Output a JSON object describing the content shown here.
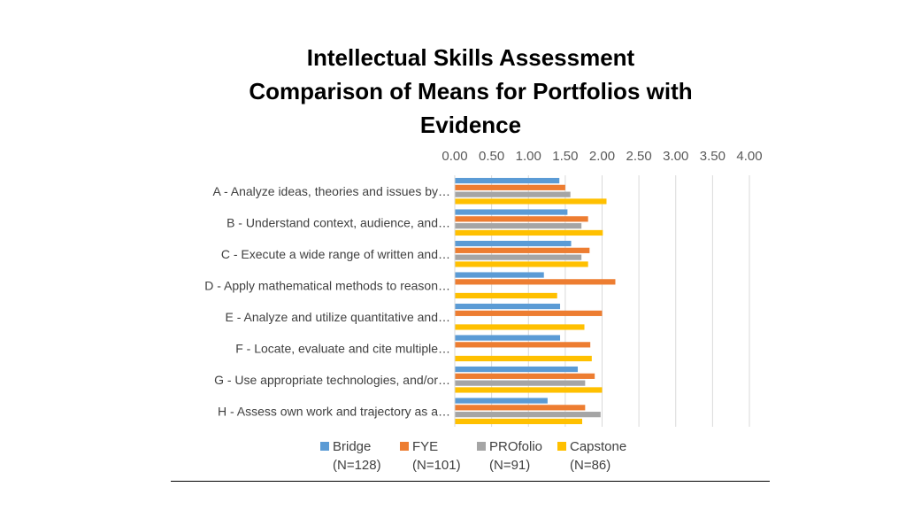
{
  "chart_data": {
    "type": "bar",
    "orientation": "horizontal",
    "title": [
      "Intellectual Skills Assessment",
      "Comparison of Means for Portfolios with",
      "Evidence"
    ],
    "xlabel": "",
    "ylabel": "",
    "xlim": [
      0,
      4
    ],
    "x_ticks": [
      "0.00",
      "0.50",
      "1.00",
      "1.50",
      "2.00",
      "2.50",
      "3.00",
      "3.50",
      "4.00"
    ],
    "x_axis_position": "top",
    "grid": true,
    "legend_position": "bottom",
    "categories": [
      "A - Analyze ideas, theories and issues by…",
      "B - Understand context, audience, and…",
      "C - Execute a wide range of written and…",
      "D - Apply mathematical methods to reason…",
      "E - Analyze and utilize quantitative and…",
      "F - Locate, evaluate and cite multiple…",
      "G - Use appropriate technologies, and/or…",
      "H - Assess own work and trajectory as a…"
    ],
    "series": [
      {
        "name": "Bridge (N=128)",
        "legend_lines": [
          "Bridge",
          "(N=128)"
        ],
        "color": "#5B9BD5",
        "values": [
          1.42,
          1.53,
          1.58,
          1.21,
          1.43,
          1.43,
          1.67,
          1.26
        ]
      },
      {
        "name": "FYE (N=101)",
        "legend_lines": [
          "FYE",
          "(N=101)"
        ],
        "color": "#ED7D31",
        "values": [
          1.5,
          1.81,
          1.83,
          2.18,
          2.0,
          1.84,
          1.9,
          1.77
        ]
      },
      {
        "name": "PROfolio (N=91)",
        "legend_lines": [
          "PROfolio",
          "(N=91)"
        ],
        "color": "#A5A5A5",
        "values": [
          1.57,
          1.72,
          1.72,
          null,
          null,
          null,
          1.77,
          1.98
        ]
      },
      {
        "name": "Capstone (N=86)",
        "legend_lines": [
          "Capstone",
          "(N=86)"
        ],
        "color": "#FFC000",
        "values": [
          2.06,
          2.01,
          1.81,
          1.39,
          1.76,
          1.86,
          2.0,
          1.73
        ]
      }
    ]
  }
}
